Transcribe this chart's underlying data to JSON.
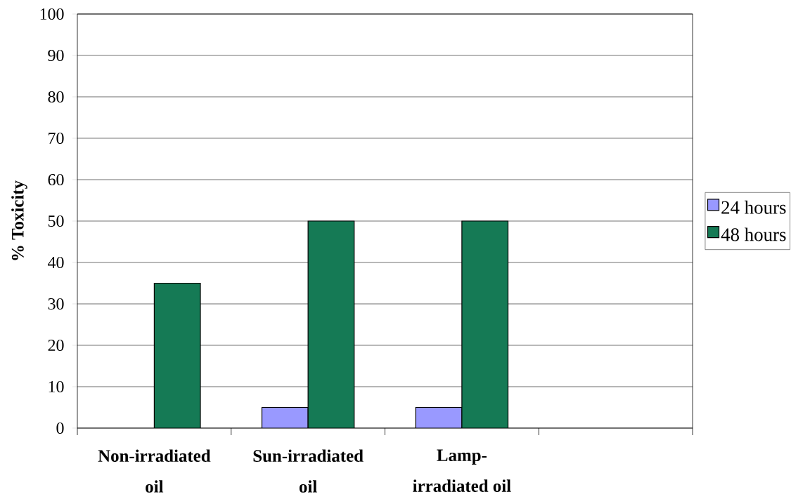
{
  "chart_data": {
    "type": "bar",
    "ylabel": "% Toxicity",
    "categories": [
      "Non-irradiated oil",
      "Sun-irradiated oil",
      "Lamp-irradiated oil",
      null
    ],
    "series": [
      {
        "name": "24 hours",
        "color": "#9999ff",
        "values": [
          null,
          5,
          5,
          null
        ]
      },
      {
        "name": "48 hours",
        "color": "#157a55",
        "values": [
          35,
          50,
          50,
          null
        ]
      }
    ],
    "ylim": [
      0,
      100
    ],
    "yticks": [
      0,
      10,
      20,
      30,
      40,
      50,
      60,
      70,
      80,
      90,
      100
    ],
    "grid": "y",
    "legend": "right"
  }
}
